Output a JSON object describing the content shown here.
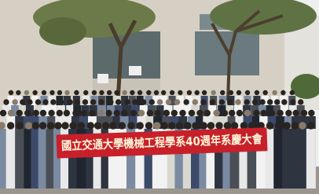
{
  "banner": {
    "text": "國立交通大學機械工程學系40週年系慶大會"
  }
}
